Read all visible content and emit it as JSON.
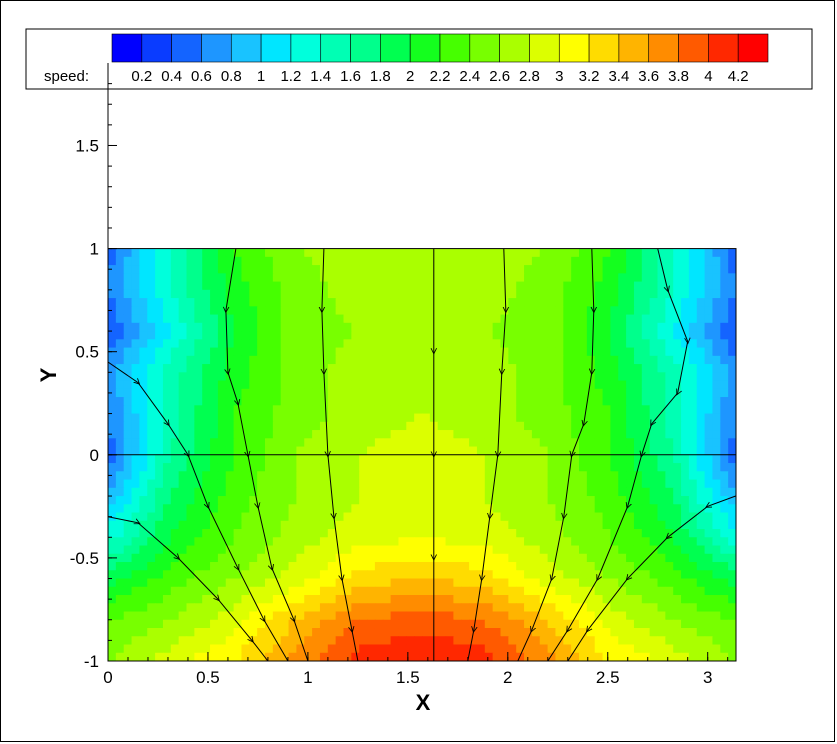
{
  "chart_data": {
    "type": "heatmap",
    "title": "",
    "xlabel": "X",
    "ylabel": "Y",
    "xlim": [
      0,
      3.1416
    ],
    "ylim": [
      -1,
      1.9
    ],
    "data_ylim": [
      -1,
      1
    ],
    "x_ticks": [
      "0",
      "0.5",
      "1",
      "1.5",
      "2",
      "2.5",
      "3"
    ],
    "y_ticks": [
      "-1",
      "-0.5",
      "0",
      "0.5",
      "1",
      "1.5"
    ],
    "legend": {
      "variable_label": "speed:",
      "levels": [
        "0.2",
        "0.4",
        "0.6",
        "0.8",
        "1",
        "1.2",
        "1.4",
        "1.6",
        "1.8",
        "2",
        "2.2",
        "2.4",
        "2.6",
        "2.8",
        "3",
        "3.2",
        "3.4",
        "3.6",
        "3.8",
        "4",
        "4.2"
      ],
      "colors": [
        "#0000ff",
        "#0a3cff",
        "#1464ff",
        "#1e96ff",
        "#19c3ff",
        "#00e6ff",
        "#00ffdc",
        "#00ffb4",
        "#00ff8c",
        "#00ff50",
        "#14ff1e",
        "#46ff00",
        "#78ff00",
        "#aaff00",
        "#dcff00",
        "#ffff00",
        "#ffdc00",
        "#ffb400",
        "#ff8c00",
        "#ff5a00",
        "#ff2800",
        "#ff0000"
      ],
      "placement": "top"
    },
    "speed_field": {
      "x": [
        0,
        0.31,
        0.63,
        0.94,
        1.26,
        1.57,
        1.88,
        2.2,
        2.51,
        2.83,
        3.14
      ],
      "y": [
        1,
        0.8,
        0.6,
        0.4,
        0.2,
        0,
        -0.2,
        -0.4,
        -0.6,
        -0.8,
        -1
      ],
      "values": [
        [
          0.5,
          1.4,
          2.2,
          2.6,
          2.7,
          2.8,
          2.7,
          2.6,
          2.2,
          1.4,
          0.5
        ],
        [
          0.6,
          1.4,
          2.1,
          2.5,
          2.7,
          2.7,
          2.7,
          2.5,
          2.1,
          1.4,
          0.6
        ],
        [
          0.4,
          1.2,
          2.0,
          2.5,
          2.6,
          2.7,
          2.6,
          2.5,
          2.0,
          1.2,
          0.4
        ],
        [
          0.7,
          1.5,
          2.1,
          2.5,
          2.7,
          2.8,
          2.7,
          2.5,
          2.1,
          1.5,
          0.7
        ],
        [
          0.6,
          1.5,
          2.2,
          2.5,
          2.7,
          2.8,
          2.7,
          2.5,
          2.2,
          1.5,
          0.6
        ],
        [
          0.5,
          1.6,
          2.2,
          2.6,
          2.8,
          2.9,
          2.8,
          2.6,
          2.2,
          1.6,
          0.5
        ],
        [
          0.8,
          1.8,
          2.3,
          2.6,
          2.8,
          2.9,
          2.8,
          2.6,
          2.3,
          1.8,
          0.8
        ],
        [
          1.3,
          2.0,
          2.4,
          2.7,
          2.9,
          3.0,
          2.9,
          2.7,
          2.4,
          2.0,
          1.3
        ],
        [
          1.9,
          2.3,
          2.6,
          2.9,
          3.3,
          3.4,
          3.3,
          2.9,
          2.6,
          2.3,
          1.9
        ],
        [
          2.4,
          2.6,
          2.9,
          3.4,
          3.8,
          3.9,
          3.8,
          3.4,
          2.9,
          2.6,
          2.4
        ],
        [
          2.6,
          2.9,
          3.2,
          3.7,
          4.1,
          4.2,
          4.1,
          3.7,
          3.2,
          2.9,
          2.6
        ]
      ]
    },
    "streamlines": [
      [
        [
          0.0,
          0.45
        ],
        [
          0.15,
          0.35
        ],
        [
          0.3,
          0.15
        ],
        [
          0.4,
          0.0
        ],
        [
          0.5,
          -0.25
        ],
        [
          0.65,
          -0.55
        ],
        [
          0.78,
          -0.8
        ],
        [
          0.9,
          -1.0
        ]
      ],
      [
        [
          0.0,
          -0.3
        ],
        [
          0.15,
          -0.33
        ],
        [
          0.35,
          -0.5
        ],
        [
          0.55,
          -0.7
        ],
        [
          0.72,
          -0.9
        ],
        [
          0.8,
          -1.0
        ]
      ],
      [
        [
          0.64,
          1.0
        ],
        [
          0.59,
          0.7
        ],
        [
          0.6,
          0.4
        ],
        [
          0.65,
          0.25
        ],
        [
          0.7,
          0.0
        ],
        [
          0.75,
          -0.25
        ],
        [
          0.82,
          -0.55
        ],
        [
          0.93,
          -0.8
        ],
        [
          1.0,
          -1.0
        ]
      ],
      [
        [
          1.08,
          1.0
        ],
        [
          1.07,
          0.7
        ],
        [
          1.08,
          0.4
        ],
        [
          1.1,
          0.0
        ],
        [
          1.13,
          -0.3
        ],
        [
          1.17,
          -0.6
        ],
        [
          1.22,
          -0.85
        ],
        [
          1.25,
          -1.0
        ]
      ],
      [
        [
          1.63,
          1.0
        ],
        [
          1.63,
          0.5
        ],
        [
          1.63,
          0.0
        ],
        [
          1.63,
          -0.5
        ],
        [
          1.63,
          -1.0
        ]
      ],
      [
        [
          1.98,
          1.0
        ],
        [
          1.99,
          0.7
        ],
        [
          1.97,
          0.4
        ],
        [
          1.95,
          0.0
        ],
        [
          1.91,
          -0.3
        ],
        [
          1.87,
          -0.6
        ],
        [
          1.83,
          -0.85
        ],
        [
          1.8,
          -1.0
        ]
      ],
      [
        [
          2.42,
          1.0
        ],
        [
          2.43,
          0.7
        ],
        [
          2.42,
          0.4
        ],
        [
          2.38,
          0.15
        ],
        [
          2.32,
          0.0
        ],
        [
          2.28,
          -0.3
        ],
        [
          2.22,
          -0.6
        ],
        [
          2.12,
          -0.85
        ],
        [
          2.05,
          -1.0
        ]
      ],
      [
        [
          2.75,
          1.0
        ],
        [
          2.8,
          0.8
        ],
        [
          2.9,
          0.55
        ],
        [
          2.85,
          0.3
        ],
        [
          2.72,
          0.15
        ],
        [
          2.67,
          0.0
        ],
        [
          2.6,
          -0.25
        ],
        [
          2.45,
          -0.6
        ],
        [
          2.3,
          -0.85
        ],
        [
          2.2,
          -1.0
        ]
      ],
      [
        [
          3.14,
          -0.2
        ],
        [
          3.0,
          -0.25
        ],
        [
          2.8,
          -0.4
        ],
        [
          2.6,
          -0.6
        ],
        [
          2.4,
          -0.85
        ],
        [
          2.3,
          -1.0
        ]
      ]
    ],
    "zero_line_y": 0
  }
}
